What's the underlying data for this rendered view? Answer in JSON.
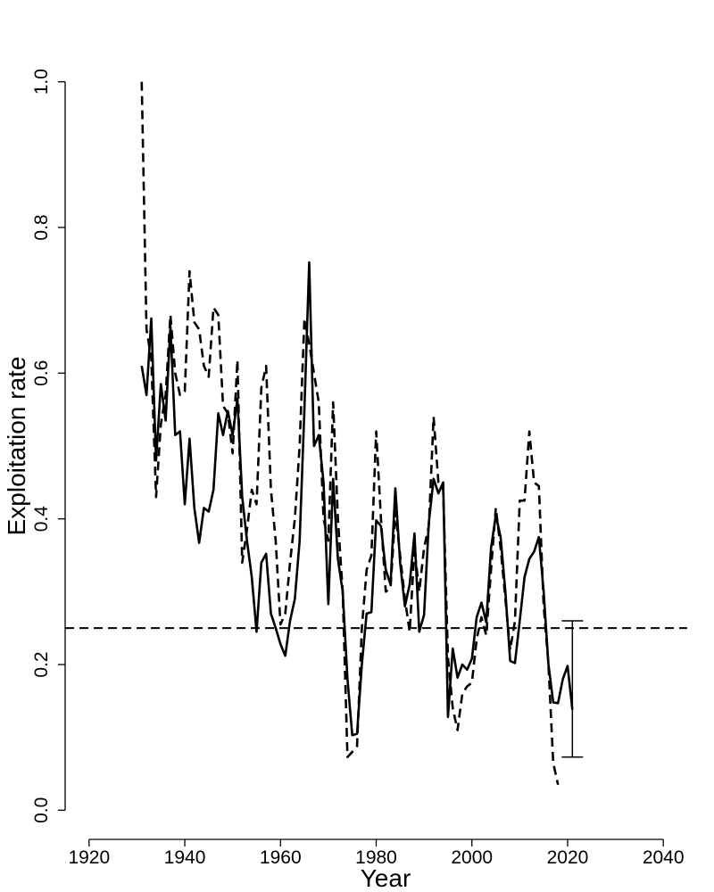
{
  "chart_data": {
    "type": "line",
    "xlabel": "Year",
    "ylabel": "Exploitation rate",
    "xlim": [
      1915,
      2045
    ],
    "ylim": [
      -0.04,
      1.04
    ],
    "xticks": [
      1920,
      1940,
      1960,
      1980,
      2000,
      2020,
      2040
    ],
    "yticks": [
      {
        "value": 0,
        "label": "0.0"
      },
      0.2,
      0.4,
      0.6,
      0.8,
      {
        "value": 1,
        "label": "1.0"
      }
    ],
    "hline": 0.25,
    "error_bar": {
      "x": 2021,
      "low": 0.073,
      "high": 0.26
    },
    "series": [
      {
        "color": "#000000",
        "dash": false,
        "x": [
          1931,
          1932,
          1933,
          1934,
          1935,
          1936,
          1937,
          1938,
          1939,
          1940,
          1941,
          1942,
          1943,
          1944,
          1945,
          1946,
          1947,
          1948,
          1949,
          1950,
          1951,
          1952,
          1953,
          1954,
          1955,
          1956,
          1957,
          1958,
          1959,
          1960,
          1961,
          1962,
          1963,
          1964,
          1965,
          1966,
          1967,
          1968,
          1969,
          1970,
          1971,
          1972,
          1973,
          1974,
          1975,
          1976,
          1977,
          1978,
          1979,
          1980,
          1981,
          1982,
          1983,
          1984,
          1985,
          1986,
          1987,
          1988,
          1989,
          1990,
          1991,
          1992,
          1993,
          1994,
          1995,
          1996,
          1997,
          1998,
          1999,
          2000,
          2001,
          2002,
          2003,
          2004,
          2005,
          2006,
          2007,
          2008,
          2009,
          2010,
          2011,
          2012,
          2013,
          2014,
          2015,
          2016,
          2017,
          2018,
          2019,
          2020,
          2021
        ],
        "values": [
          0.61,
          0.57,
          0.675,
          0.48,
          0.585,
          0.535,
          0.665,
          0.515,
          0.52,
          0.42,
          0.51,
          0.415,
          0.367,
          0.415,
          0.41,
          0.44,
          0.545,
          0.515,
          0.548,
          0.515,
          0.565,
          0.43,
          0.37,
          0.32,
          0.245,
          0.34,
          0.352,
          0.27,
          0.25,
          0.228,
          0.212,
          0.26,
          0.29,
          0.37,
          0.55,
          0.752,
          0.5,
          0.515,
          0.45,
          0.283,
          0.455,
          0.345,
          0.3,
          0.18,
          0.103,
          0.105,
          0.2,
          0.27,
          0.272,
          0.398,
          0.39,
          0.33,
          0.31,
          0.442,
          0.34,
          0.28,
          0.31,
          0.38,
          0.245,
          0.268,
          0.395,
          0.455,
          0.435,
          0.45,
          0.128,
          0.222,
          0.182,
          0.2,
          0.193,
          0.208,
          0.265,
          0.285,
          0.258,
          0.36,
          0.405,
          0.375,
          0.3,
          0.205,
          0.202,
          0.26,
          0.32,
          0.345,
          0.355,
          0.375,
          0.3,
          0.2,
          0.148,
          0.147,
          0.18,
          0.198,
          0.138
        ]
      },
      {
        "color": "#000000",
        "dash": true,
        "x": [
          1931,
          1932,
          1933,
          1934,
          1935,
          1936,
          1937,
          1938,
          1939,
          1940,
          1941,
          1942,
          1943,
          1944,
          1945,
          1946,
          1947,
          1948,
          1949,
          1950,
          1951,
          1952,
          1953,
          1954,
          1955,
          1956,
          1957,
          1958,
          1959,
          1960,
          1961,
          1962,
          1963,
          1964,
          1965,
          1966,
          1967,
          1968,
          1969,
          1970,
          1971,
          1972,
          1973,
          1974,
          1975,
          1976,
          1977,
          1978,
          1979,
          1980,
          1981,
          1982,
          1983,
          1984,
          1985,
          1986,
          1987,
          1988,
          1989,
          1990,
          1991,
          1992,
          1993,
          1994,
          1995,
          1996,
          1997,
          1998,
          1999,
          2000,
          2001,
          2002,
          2003,
          2004,
          2005,
          2006,
          2007,
          2008,
          2009,
          2010,
          2011,
          2012,
          2013,
          2014,
          2015,
          2016,
          2017,
          2018
        ],
        "values": [
          1.0,
          0.66,
          0.62,
          0.43,
          0.53,
          0.57,
          0.68,
          0.6,
          0.57,
          0.575,
          0.74,
          0.67,
          0.66,
          0.61,
          0.595,
          0.69,
          0.68,
          0.555,
          0.545,
          0.49,
          0.618,
          0.34,
          0.385,
          0.44,
          0.42,
          0.58,
          0.61,
          0.44,
          0.37,
          0.255,
          0.27,
          0.34,
          0.4,
          0.5,
          0.675,
          0.64,
          0.6,
          0.56,
          0.4,
          0.37,
          0.56,
          0.4,
          0.3,
          0.073,
          0.08,
          0.088,
          0.25,
          0.33,
          0.35,
          0.52,
          0.4,
          0.3,
          0.305,
          0.41,
          0.35,
          0.29,
          0.245,
          0.36,
          0.3,
          0.36,
          0.39,
          0.54,
          0.45,
          0.44,
          0.21,
          0.14,
          0.11,
          0.16,
          0.17,
          0.175,
          0.235,
          0.265,
          0.24,
          0.33,
          0.415,
          0.36,
          0.29,
          0.22,
          0.26,
          0.425,
          0.425,
          0.52,
          0.45,
          0.445,
          0.28,
          0.2,
          0.065,
          0.035
        ]
      }
    ]
  }
}
